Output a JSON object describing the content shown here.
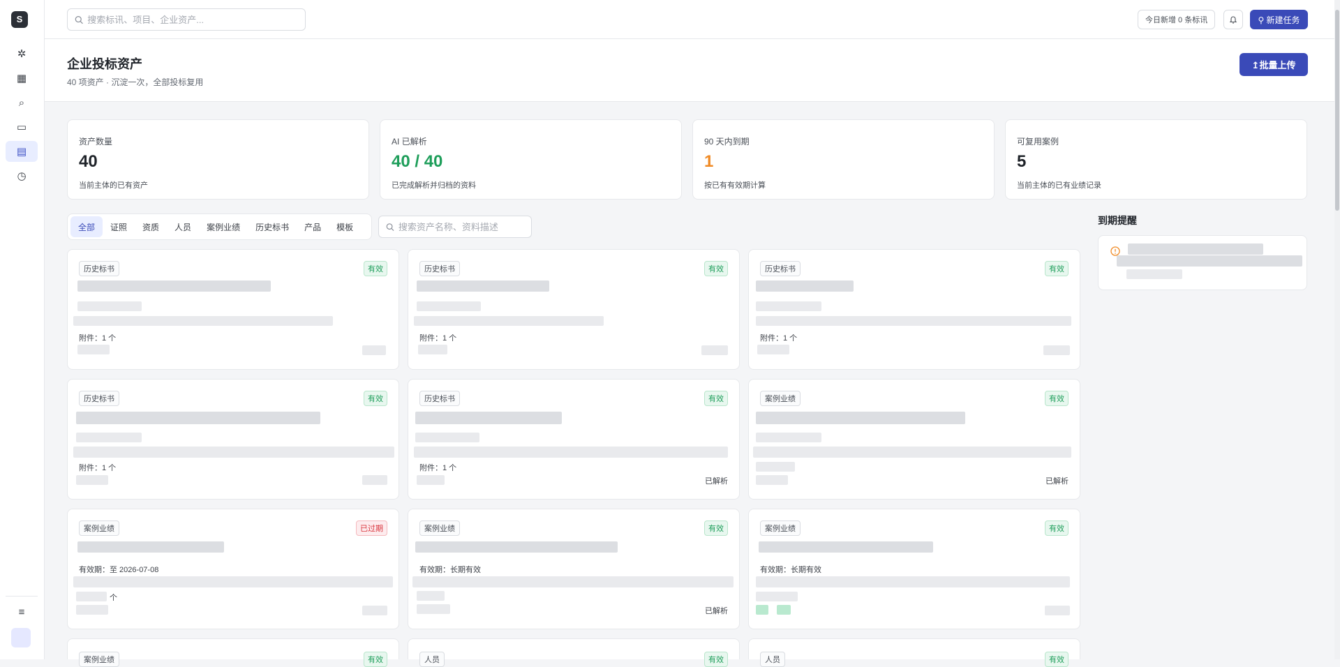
{
  "sidebar": {
    "logo": "S",
    "items": [
      {
        "name": "sparkle-icon",
        "icon": "✲"
      },
      {
        "name": "grid-icon",
        "icon": "▦"
      },
      {
        "name": "search-icon",
        "icon": "⌕"
      },
      {
        "name": "folder-icon",
        "icon": "▭"
      },
      {
        "name": "book-icon",
        "icon": "▤",
        "active": true
      },
      {
        "name": "clock-icon",
        "icon": "◷"
      }
    ],
    "menu_icon": "≡"
  },
  "topbar": {
    "search_placeholder": "搜索标讯、项目、企业资产...",
    "today_pill": "今日新增 0 条标讯",
    "bell_icon": "bell-icon",
    "new_task": "⚲ 新建任务"
  },
  "header": {
    "title": "企业投标资产",
    "subtitle": "40 项资产 · 沉淀一次，全部投标复用",
    "upload_button": "↥批量上传"
  },
  "stats": [
    {
      "label": "资产数量",
      "value": "40",
      "note": "当前主体的已有资产",
      "color": "#1f2329"
    },
    {
      "label": "AI 已解析",
      "value": "40 / 40",
      "note": "已完成解析并归档的资料",
      "color": "#1e9e5a"
    },
    {
      "label": "90 天内到期",
      "value": "1",
      "note": "按已有有效期计算",
      "color": "#f08a24"
    },
    {
      "label": "可复用案例",
      "value": "5",
      "note": "当前主体的已有业绩记录",
      "color": "#1f2329"
    }
  ],
  "tabs": [
    "全部",
    "证照",
    "资质",
    "人员",
    "案例业绩",
    "历史标书",
    "产品",
    "模板"
  ],
  "asset_search_placeholder": "搜索资产名称、资料描述",
  "cards": [
    {
      "category": "历史标书",
      "status": "有效",
      "status_type": "ok",
      "meta": "附件：1 个",
      "validity": "",
      "parsed": ""
    },
    {
      "category": "历史标书",
      "status": "有效",
      "status_type": "ok",
      "meta": "附件：1 个",
      "validity": "",
      "parsed": ""
    },
    {
      "category": "历史标书",
      "status": "有效",
      "status_type": "ok",
      "meta": "附件：1 个",
      "validity": "",
      "parsed": ""
    },
    {
      "category": "历史标书",
      "status": "有效",
      "status_type": "ok",
      "meta": "附件：1 个",
      "validity": "",
      "parsed": ""
    },
    {
      "category": "历史标书",
      "status": "有效",
      "status_type": "ok",
      "meta": "附件：1 个",
      "validity": "",
      "parsed": "已解析"
    },
    {
      "category": "案例业绩",
      "status": "有效",
      "status_type": "ok",
      "meta": "",
      "validity": "",
      "parsed": "已解析"
    },
    {
      "category": "案例业绩",
      "status": "已过期",
      "status_type": "bad",
      "meta": "个",
      "validity": "有效期：至 2026-07-08",
      "parsed": ""
    },
    {
      "category": "案例业绩",
      "status": "有效",
      "status_type": "ok",
      "meta": "",
      "validity": "有效期：长期有效",
      "parsed": "已解析"
    },
    {
      "category": "案例业绩",
      "status": "有效",
      "status_type": "ok",
      "meta": "",
      "validity": "有效期：长期有效",
      "parsed": ""
    },
    {
      "category": "案例业绩",
      "status": "有效",
      "status_type": "ok",
      "meta": "",
      "validity": "",
      "parsed": ""
    },
    {
      "category": "人员",
      "status": "有效",
      "status_type": "ok",
      "meta": "",
      "validity": "",
      "parsed": ""
    },
    {
      "category": "人员",
      "status": "有效",
      "status_type": "ok",
      "meta": "",
      "validity": "",
      "parsed": ""
    }
  ],
  "reminder": {
    "title": "到期提醒",
    "icon": "warning-icon"
  }
}
